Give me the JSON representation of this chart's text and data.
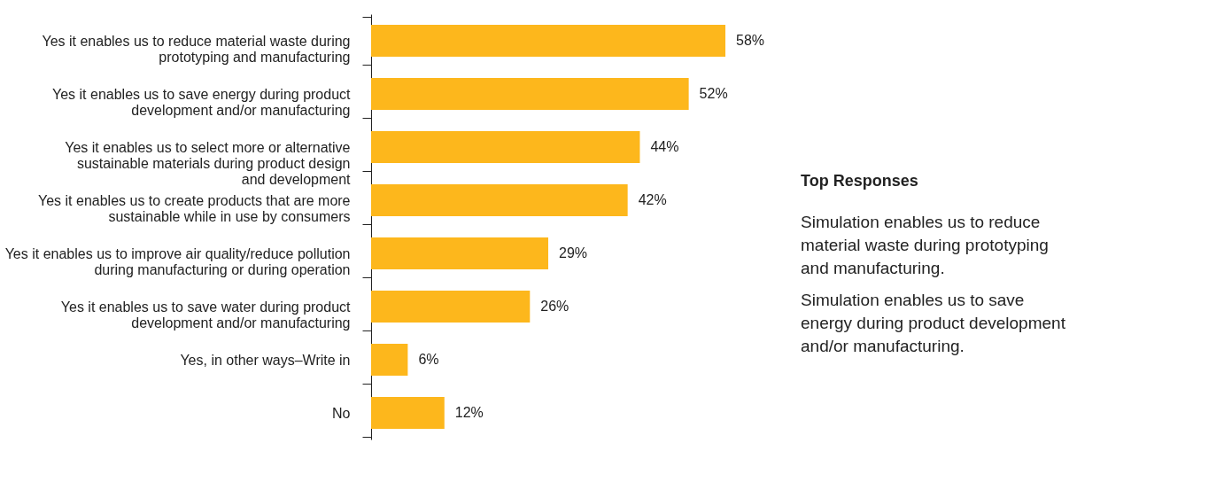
{
  "chart_data": {
    "type": "bar",
    "orientation": "horizontal",
    "color": "#fdb71c",
    "grid": false,
    "categories": [
      "Yes it enables us to reduce material waste during\nprototyping and manufacturing",
      "Yes it enables us to save energy during product\ndevelopment and/or manufacturing",
      "Yes it enables us to select more or alternative\nsustainable materials during product design\nand development",
      "Yes it enables us to create products that are more\nsustainable while in use by consumers",
      "Yes it enables us to improve air quality/reduce pollution\nduring manufacturing or during operation",
      "Yes it enables us to save water during product\ndevelopment and/or manufacturing",
      "Yes, in other ways–Write in",
      "No"
    ],
    "values": [
      58,
      52,
      44,
      42,
      29,
      26,
      6,
      12
    ],
    "value_labels": [
      "58%",
      "52%",
      "44%",
      "42%",
      "29%",
      "26%",
      "6%",
      "12%"
    ],
    "annotations": [
      "Top Responses",
      "Simulation enables us to reduce\nmaterial waste during prototyping\nand manufacturing.",
      "Simulation enables us to save\nenergy during product development\nand/or manufacturing."
    ]
  }
}
